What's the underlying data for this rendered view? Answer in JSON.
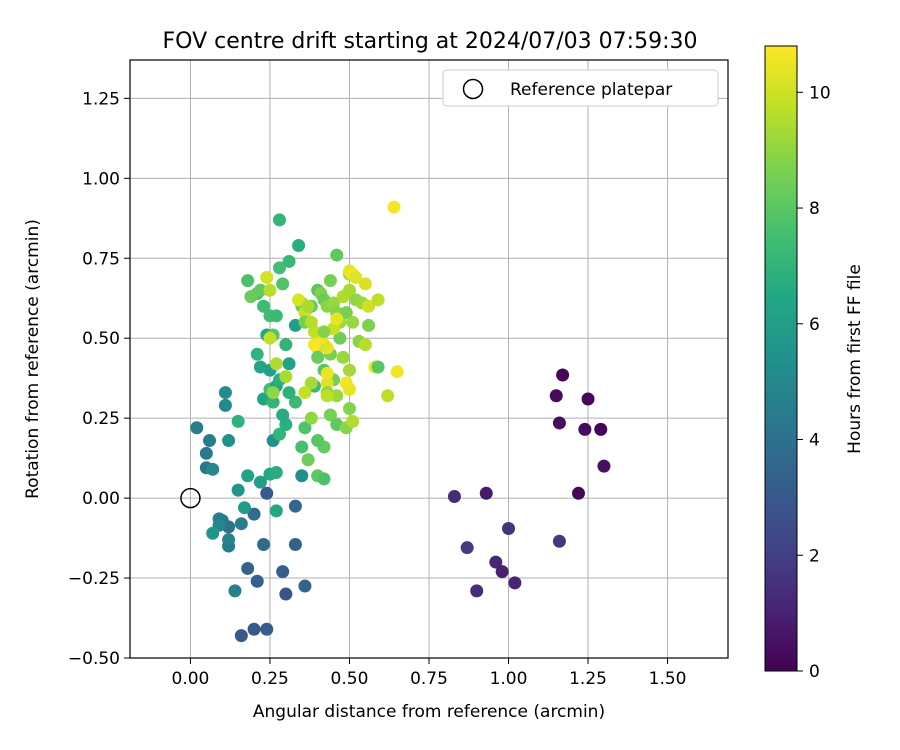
{
  "chart_data": {
    "type": "scatter",
    "title": "FOV centre drift starting at 2024/07/03 07:59:30",
    "xlabel": "Angular distance from reference (arcmin)",
    "ylabel": "Rotation from reference (arcmin)",
    "xlim": [
      -0.19,
      1.69
    ],
    "ylim": [
      -0.5,
      1.37
    ],
    "xticks": [
      0.0,
      0.25,
      0.5,
      0.75,
      1.0,
      1.25,
      1.5
    ],
    "xtick_labels": [
      "0.00",
      "0.25",
      "0.50",
      "0.75",
      "1.00",
      "1.25",
      "1.50"
    ],
    "yticks": [
      -0.5,
      -0.25,
      0.0,
      0.25,
      0.5,
      0.75,
      1.0,
      1.25
    ],
    "ytick_labels": [
      "−0.50",
      "−0.25",
      "0.00",
      "0.25",
      "0.50",
      "0.75",
      "1.00",
      "1.25"
    ],
    "grid": true,
    "legend": {
      "position": "top-right",
      "entries": [
        "Reference platepar"
      ]
    },
    "reference_point": {
      "x": 0.0,
      "y": 0.0
    },
    "colorbar": {
      "label": "Hours from first FF file",
      "range": [
        0,
        10.8
      ],
      "ticks": [
        0,
        2,
        4,
        6,
        8,
        10
      ],
      "tick_labels": [
        "0",
        "2",
        "4",
        "6",
        "8",
        "10"
      ],
      "colormap": "viridis"
    },
    "points": [
      {
        "x": 1.17,
        "y": 0.385,
        "c": 0.2
      },
      {
        "x": 1.15,
        "y": 0.32,
        "c": 0.3
      },
      {
        "x": 1.25,
        "y": 0.31,
        "c": 0.2
      },
      {
        "x": 1.16,
        "y": 0.235,
        "c": 0.4
      },
      {
        "x": 1.24,
        "y": 0.215,
        "c": 0.3
      },
      {
        "x": 1.29,
        "y": 0.215,
        "c": 0.1
      },
      {
        "x": 1.3,
        "y": 0.1,
        "c": 0.5
      },
      {
        "x": 1.22,
        "y": 0.015,
        "c": 0.2
      },
      {
        "x": 0.93,
        "y": 0.015,
        "c": 0.8
      },
      {
        "x": 0.83,
        "y": 0.005,
        "c": 1.3
      },
      {
        "x": 1.0,
        "y": -0.095,
        "c": 1.6
      },
      {
        "x": 1.16,
        "y": -0.135,
        "c": 1.8
      },
      {
        "x": 0.87,
        "y": -0.155,
        "c": 1.9
      },
      {
        "x": 0.96,
        "y": -0.2,
        "c": 1.2
      },
      {
        "x": 0.98,
        "y": -0.23,
        "c": 1.0
      },
      {
        "x": 1.02,
        "y": -0.265,
        "c": 1.1
      },
      {
        "x": 0.9,
        "y": -0.29,
        "c": 1.4
      },
      {
        "x": 0.16,
        "y": -0.43,
        "c": 2.9
      },
      {
        "x": 0.2,
        "y": -0.41,
        "c": 3.0
      },
      {
        "x": 0.24,
        "y": -0.41,
        "c": 3.1
      },
      {
        "x": 0.18,
        "y": -0.22,
        "c": 3.4
      },
      {
        "x": 0.21,
        "y": -0.26,
        "c": 3.3
      },
      {
        "x": 0.29,
        "y": -0.23,
        "c": 3.2
      },
      {
        "x": 0.3,
        "y": -0.3,
        "c": 2.8
      },
      {
        "x": 0.36,
        "y": -0.275,
        "c": 3.5
      },
      {
        "x": 0.23,
        "y": -0.145,
        "c": 3.7
      },
      {
        "x": 0.33,
        "y": -0.145,
        "c": 3.4
      },
      {
        "x": 0.33,
        "y": -0.025,
        "c": 3.6
      },
      {
        "x": 0.2,
        "y": -0.05,
        "c": 3.8
      },
      {
        "x": 0.24,
        "y": 0.015,
        "c": 3.0
      },
      {
        "x": 0.12,
        "y": -0.09,
        "c": 4.0
      },
      {
        "x": 0.12,
        "y": -0.15,
        "c": 4.4
      },
      {
        "x": 0.14,
        "y": -0.29,
        "c": 4.7
      },
      {
        "x": 0.1,
        "y": -0.07,
        "c": 4.3
      },
      {
        "x": 0.09,
        "y": -0.065,
        "c": 4.6
      },
      {
        "x": 0.09,
        "y": -0.085,
        "c": 4.9
      },
      {
        "x": 0.16,
        "y": -0.08,
        "c": 4.5
      },
      {
        "x": 0.12,
        "y": -0.13,
        "c": 4.8
      },
      {
        "x": 0.05,
        "y": 0.095,
        "c": 4.2
      },
      {
        "x": 0.05,
        "y": 0.14,
        "c": 4.3
      },
      {
        "x": 0.02,
        "y": 0.22,
        "c": 4.6
      },
      {
        "x": 0.06,
        "y": 0.18,
        "c": 4.5
      },
      {
        "x": 0.07,
        "y": 0.09,
        "c": 5.1
      },
      {
        "x": 0.07,
        "y": -0.11,
        "c": 5.6
      },
      {
        "x": 0.11,
        "y": 0.33,
        "c": 5.2
      },
      {
        "x": 0.11,
        "y": 0.29,
        "c": 5.0
      },
      {
        "x": 0.12,
        "y": 0.18,
        "c": 5.4
      },
      {
        "x": 0.17,
        "y": -0.03,
        "c": 5.8
      },
      {
        "x": 0.18,
        "y": 0.07,
        "c": 6.2
      },
      {
        "x": 0.15,
        "y": 0.025,
        "c": 5.7
      },
      {
        "x": 0.22,
        "y": 0.05,
        "c": 6.0
      },
      {
        "x": 0.25,
        "y": 0.075,
        "c": 6.4
      },
      {
        "x": 0.27,
        "y": 0.08,
        "c": 6.7
      },
      {
        "x": 0.27,
        "y": -0.04,
        "c": 6.5
      },
      {
        "x": 0.35,
        "y": 0.07,
        "c": 5.3
      },
      {
        "x": 0.26,
        "y": 0.18,
        "c": 5.5
      },
      {
        "x": 0.15,
        "y": 0.24,
        "c": 6.9
      },
      {
        "x": 0.23,
        "y": 0.31,
        "c": 6.3
      },
      {
        "x": 0.28,
        "y": 0.2,
        "c": 7.1
      },
      {
        "x": 0.3,
        "y": 0.23,
        "c": 6.8
      },
      {
        "x": 0.35,
        "y": 0.16,
        "c": 7.6
      },
      {
        "x": 0.37,
        "y": 0.12,
        "c": 8.4
      },
      {
        "x": 0.4,
        "y": 0.07,
        "c": 8.1
      },
      {
        "x": 0.42,
        "y": 0.06,
        "c": 7.7
      },
      {
        "x": 0.42,
        "y": 0.16,
        "c": 8.2
      },
      {
        "x": 0.4,
        "y": 0.18,
        "c": 8.0
      },
      {
        "x": 0.33,
        "y": 0.3,
        "c": 7.3
      },
      {
        "x": 0.31,
        "y": 0.33,
        "c": 6.9
      },
      {
        "x": 0.25,
        "y": 0.34,
        "c": 7.5
      },
      {
        "x": 0.26,
        "y": 0.3,
        "c": 7.0
      },
      {
        "x": 0.29,
        "y": 0.26,
        "c": 6.6
      },
      {
        "x": 0.36,
        "y": 0.22,
        "c": 7.8
      },
      {
        "x": 0.39,
        "y": 0.35,
        "c": 7.2
      },
      {
        "x": 0.21,
        "y": 0.45,
        "c": 7.0
      },
      {
        "x": 0.22,
        "y": 0.41,
        "c": 6.4
      },
      {
        "x": 0.25,
        "y": 0.4,
        "c": 6.1
      },
      {
        "x": 0.24,
        "y": 0.51,
        "c": 6.5
      },
      {
        "x": 0.27,
        "y": 0.35,
        "c": 6.3
      },
      {
        "x": 0.28,
        "y": 0.37,
        "c": 6.8
      },
      {
        "x": 0.31,
        "y": 0.42,
        "c": 6.2
      },
      {
        "x": 0.33,
        "y": 0.54,
        "c": 6.0
      },
      {
        "x": 0.3,
        "y": 0.48,
        "c": 7.0
      },
      {
        "x": 0.25,
        "y": 0.57,
        "c": 7.4
      },
      {
        "x": 0.26,
        "y": 0.51,
        "c": 7.9
      },
      {
        "x": 0.27,
        "y": 0.57,
        "c": 7.3
      },
      {
        "x": 0.28,
        "y": 0.72,
        "c": 7.5
      },
      {
        "x": 0.29,
        "y": 0.67,
        "c": 7.8
      },
      {
        "x": 0.31,
        "y": 0.74,
        "c": 7.2
      },
      {
        "x": 0.34,
        "y": 0.79,
        "c": 6.7
      },
      {
        "x": 0.28,
        "y": 0.87,
        "c": 7.1
      },
      {
        "x": 0.21,
        "y": 0.64,
        "c": 7.6
      },
      {
        "x": 0.18,
        "y": 0.68,
        "c": 7.7
      },
      {
        "x": 0.19,
        "y": 0.63,
        "c": 8.3
      },
      {
        "x": 0.22,
        "y": 0.65,
        "c": 8.2
      },
      {
        "x": 0.23,
        "y": 0.6,
        "c": 7.4
      },
      {
        "x": 0.25,
        "y": 0.65,
        "c": 9.6
      },
      {
        "x": 0.24,
        "y": 0.69,
        "c": 10.1
      },
      {
        "x": 0.25,
        "y": 0.5,
        "c": 9.8
      },
      {
        "x": 0.27,
        "y": 0.42,
        "c": 9.5
      },
      {
        "x": 0.3,
        "y": 0.38,
        "c": 9.4
      },
      {
        "x": 0.26,
        "y": 0.33,
        "c": 9.0
      },
      {
        "x": 0.35,
        "y": 0.61,
        "c": 8.9
      },
      {
        "x": 0.35,
        "y": 0.6,
        "c": 8.4
      },
      {
        "x": 0.34,
        "y": 0.62,
        "c": 10.2
      },
      {
        "x": 0.36,
        "y": 0.58,
        "c": 9.9
      },
      {
        "x": 0.36,
        "y": 0.55,
        "c": 8.5
      },
      {
        "x": 0.38,
        "y": 0.6,
        "c": 8.1
      },
      {
        "x": 0.4,
        "y": 0.65,
        "c": 8.0
      },
      {
        "x": 0.41,
        "y": 0.64,
        "c": 8.7
      },
      {
        "x": 0.42,
        "y": 0.62,
        "c": 8.3
      },
      {
        "x": 0.43,
        "y": 0.6,
        "c": 8.9
      },
      {
        "x": 0.44,
        "y": 0.68,
        "c": 8.5
      },
      {
        "x": 0.46,
        "y": 0.76,
        "c": 8.1
      },
      {
        "x": 0.45,
        "y": 0.61,
        "c": 9.1
      },
      {
        "x": 0.46,
        "y": 0.58,
        "c": 8.8
      },
      {
        "x": 0.47,
        "y": 0.55,
        "c": 9.2
      },
      {
        "x": 0.48,
        "y": 0.63,
        "c": 9.5
      },
      {
        "x": 0.49,
        "y": 0.58,
        "c": 8.6
      },
      {
        "x": 0.5,
        "y": 0.7,
        "c": 9.3
      },
      {
        "x": 0.5,
        "y": 0.71,
        "c": 10.4
      },
      {
        "x": 0.51,
        "y": 0.7,
        "c": 10.6
      },
      {
        "x": 0.52,
        "y": 0.69,
        "c": 10.3
      },
      {
        "x": 0.5,
        "y": 0.65,
        "c": 9.4
      },
      {
        "x": 0.52,
        "y": 0.62,
        "c": 9.0
      },
      {
        "x": 0.54,
        "y": 0.61,
        "c": 9.2
      },
      {
        "x": 0.55,
        "y": 0.67,
        "c": 10.2
      },
      {
        "x": 0.56,
        "y": 0.6,
        "c": 10.0
      },
      {
        "x": 0.59,
        "y": 0.62,
        "c": 9.7
      },
      {
        "x": 0.56,
        "y": 0.54,
        "c": 8.7
      },
      {
        "x": 0.53,
        "y": 0.49,
        "c": 8.9
      },
      {
        "x": 0.51,
        "y": 0.55,
        "c": 9.1
      },
      {
        "x": 0.47,
        "y": 0.5,
        "c": 8.4
      },
      {
        "x": 0.44,
        "y": 0.45,
        "c": 8.6
      },
      {
        "x": 0.45,
        "y": 0.53,
        "c": 9.9
      },
      {
        "x": 0.46,
        "y": 0.56,
        "c": 10.4
      },
      {
        "x": 0.43,
        "y": 0.47,
        "c": 10.5
      },
      {
        "x": 0.42,
        "y": 0.48,
        "c": 10.2
      },
      {
        "x": 0.41,
        "y": 0.5,
        "c": 10.6
      },
      {
        "x": 0.4,
        "y": 0.47,
        "c": 10.1
      },
      {
        "x": 0.39,
        "y": 0.48,
        "c": 10.7
      },
      {
        "x": 0.39,
        "y": 0.52,
        "c": 9.8
      },
      {
        "x": 0.38,
        "y": 0.55,
        "c": 9.6
      },
      {
        "x": 0.37,
        "y": 0.6,
        "c": 9.4
      },
      {
        "x": 0.42,
        "y": 0.52,
        "c": 8.8
      },
      {
        "x": 0.4,
        "y": 0.44,
        "c": 8.3
      },
      {
        "x": 0.42,
        "y": 0.4,
        "c": 7.9
      },
      {
        "x": 0.45,
        "y": 0.37,
        "c": 8.5
      },
      {
        "x": 0.48,
        "y": 0.44,
        "c": 9.1
      },
      {
        "x": 0.5,
        "y": 0.4,
        "c": 9.3
      },
      {
        "x": 0.43,
        "y": 0.36,
        "c": 10.3
      },
      {
        "x": 0.43,
        "y": 0.33,
        "c": 9.0
      },
      {
        "x": 0.46,
        "y": 0.32,
        "c": 9.2
      },
      {
        "x": 0.44,
        "y": 0.26,
        "c": 8.6
      },
      {
        "x": 0.46,
        "y": 0.23,
        "c": 8.1
      },
      {
        "x": 0.49,
        "y": 0.22,
        "c": 8.9
      },
      {
        "x": 0.51,
        "y": 0.24,
        "c": 9.5
      },
      {
        "x": 0.5,
        "y": 0.28,
        "c": 8.8
      },
      {
        "x": 0.5,
        "y": 0.34,
        "c": 10.4
      },
      {
        "x": 0.49,
        "y": 0.36,
        "c": 10.6
      },
      {
        "x": 0.43,
        "y": 0.32,
        "c": 9.7
      },
      {
        "x": 0.43,
        "y": 0.39,
        "c": 10.5
      },
      {
        "x": 0.38,
        "y": 0.36,
        "c": 9.3
      },
      {
        "x": 0.36,
        "y": 0.33,
        "c": 9.8
      },
      {
        "x": 0.38,
        "y": 0.25,
        "c": 9.0
      },
      {
        "x": 0.55,
        "y": 0.48,
        "c": 9.6
      },
      {
        "x": 0.58,
        "y": 0.41,
        "c": 10.5
      },
      {
        "x": 0.59,
        "y": 0.41,
        "c": 8.0
      },
      {
        "x": 0.65,
        "y": 0.395,
        "c": 10.6
      },
      {
        "x": 0.62,
        "y": 0.32,
        "c": 9.7
      },
      {
        "x": 0.64,
        "y": 0.91,
        "c": 10.7
      }
    ]
  }
}
